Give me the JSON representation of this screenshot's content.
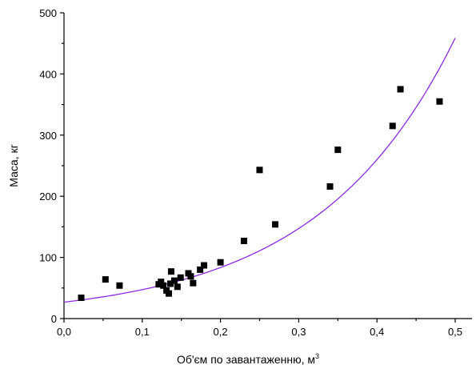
{
  "chart_data": {
    "type": "scatter",
    "xlabel": "Об'єм по завантаженню, м",
    "xlabel_sup": "3",
    "ylabel": "Маса, кг",
    "xlim": [
      0.0,
      0.55
    ],
    "ylim": [
      0,
      500
    ],
    "x_ticks": [
      0.0,
      0.1,
      0.2,
      0.3,
      0.4,
      0.5
    ],
    "x_tick_labels": [
      "0,0",
      "0,1",
      "0,2",
      "0,3",
      "0,4",
      "0,5"
    ],
    "y_ticks": [
      0,
      100,
      200,
      300,
      400,
      500
    ],
    "y_tick_labels": [
      "0",
      "100",
      "200",
      "300",
      "400",
      "500"
    ],
    "grid": false,
    "marker_color": "#000000",
    "fit_color": "#8a2be2",
    "series": [
      {
        "type": "scatter",
        "marker": "square",
        "points": [
          [
            0.022,
            34
          ],
          [
            0.053,
            64
          ],
          [
            0.071,
            54
          ],
          [
            0.121,
            56
          ],
          [
            0.124,
            60
          ],
          [
            0.127,
            54
          ],
          [
            0.131,
            46
          ],
          [
            0.134,
            41
          ],
          [
            0.136,
            57
          ],
          [
            0.137,
            77
          ],
          [
            0.141,
            62
          ],
          [
            0.145,
            52
          ],
          [
            0.149,
            67
          ],
          [
            0.159,
            74
          ],
          [
            0.162,
            69
          ],
          [
            0.165,
            58
          ],
          [
            0.174,
            80
          ],
          [
            0.179,
            87
          ],
          [
            0.2,
            92
          ],
          [
            0.23,
            127
          ],
          [
            0.25,
            243
          ],
          [
            0.27,
            154
          ],
          [
            0.34,
            216
          ],
          [
            0.35,
            276
          ],
          [
            0.42,
            315
          ],
          [
            0.43,
            375
          ],
          [
            0.48,
            355
          ]
        ]
      },
      {
        "type": "line",
        "model": "exponential",
        "a": 26.8,
        "b": 5.68,
        "x_range": [
          0.0,
          0.5
        ]
      }
    ]
  }
}
